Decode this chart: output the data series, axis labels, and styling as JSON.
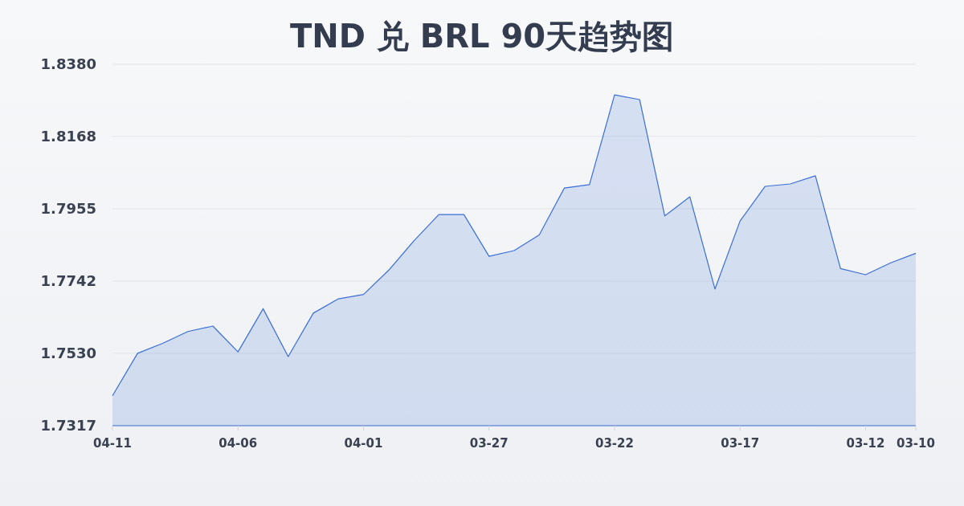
{
  "chart_data": {
    "type": "area",
    "title": "TND 兑 BRL 90天趋势图",
    "categories": [
      "04-11",
      null,
      null,
      null,
      null,
      "04-06",
      null,
      null,
      null,
      null,
      "04-01",
      null,
      null,
      null,
      null,
      "03-27",
      null,
      null,
      null,
      null,
      "03-22",
      null,
      null,
      null,
      null,
      "03-17",
      null,
      null,
      null,
      null,
      "03-12",
      null,
      "03-10"
    ],
    "values": [
      1.7405,
      1.753,
      1.7559,
      1.7594,
      1.761,
      1.7534,
      1.7661,
      1.752,
      1.7648,
      1.769,
      1.7703,
      1.7774,
      1.786,
      1.7938,
      1.7938,
      1.7815,
      1.7832,
      1.7878,
      1.8016,
      1.8026,
      1.829,
      1.8276,
      1.7934,
      1.799,
      1.7719,
      1.7919,
      1.8021,
      1.8028,
      1.8052,
      1.7779,
      1.7761,
      1.7796,
      1.7824
    ],
    "color": "#3b6fd4",
    "ylim": [
      1.7317,
      1.838
    ],
    "yticks": [
      1.7317,
      {
        "value": 1.753,
        "label": "1.7530"
      },
      1.7742,
      1.7955,
      1.8168,
      {
        "value": 1.838,
        "label": "1.8380"
      }
    ],
    "grid": "y"
  }
}
